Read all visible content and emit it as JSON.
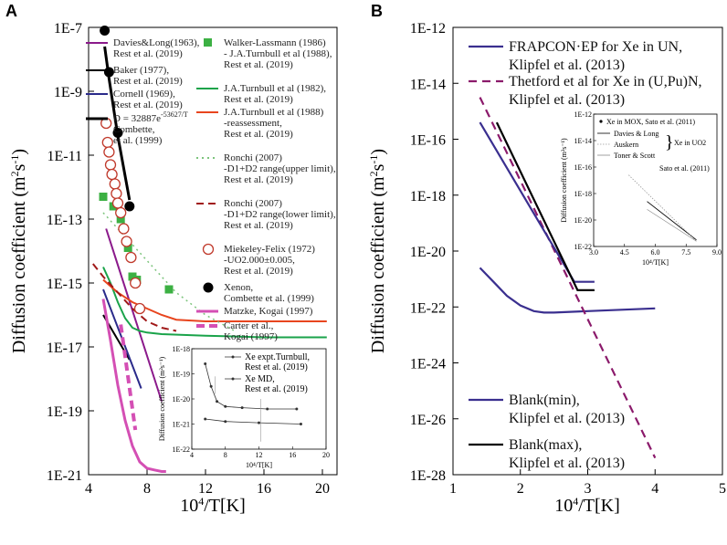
{
  "panels": {
    "A": {
      "label": "A"
    },
    "B": {
      "label": "B"
    }
  },
  "chart_data": [
    {
      "type": "line",
      "panel": "A",
      "xlabel": "10^4/T[K]",
      "ylabel": "Diffusion coefficient (m^2s^-1)",
      "xlim": [
        4,
        21
      ],
      "ylim_log10": [
        -21,
        -7
      ],
      "xticks": [
        "4",
        "8",
        "12",
        "16",
        "20"
      ],
      "yticks": [
        "1E-7",
        "1E-9",
        "1E-11",
        "1E-13",
        "1E-15",
        "1E-17",
        "1E-19",
        "1E-21"
      ],
      "series": [
        {
          "name": "Davies&Long(1963), Rest et al. (2019)",
          "color": "#8b1a8b",
          "x": [
            5.2,
            9.0
          ],
          "y": [
            -13.3,
            -18.7
          ]
        },
        {
          "name": "Baker (1977), Rest et al. (2019)",
          "color": "#000000",
          "x": [
            5.0,
            6.8
          ],
          "y": [
            -16.0,
            -17.4
          ]
        },
        {
          "name": "Cornell (1969), Rest et al. (2019)",
          "color": "#2a2a8a",
          "x": [
            5.0,
            7.6
          ],
          "y": [
            -15.2,
            -18.3
          ]
        },
        {
          "name": "D = 32887e^-53627/T Combette, et al. (1999)",
          "color": "#000000",
          "x": [
            5.1,
            5.4,
            6.0,
            6.8
          ],
          "y": [
            -7.6,
            -8.6,
            -10.4,
            -12.4
          ]
        },
        {
          "name": "J.A.Turnbull et al (1982), Rest et al. (2019)",
          "color": "#1aa34a",
          "x": [
            5.0,
            5.5,
            6.0,
            6.5,
            7.0,
            7.5,
            8.0,
            9.0,
            12.0,
            16.0,
            20.3
          ],
          "y": [
            -14.5,
            -15.0,
            -15.6,
            -16.1,
            -16.4,
            -16.5,
            -16.55,
            -16.6,
            -16.65,
            -16.7,
            -16.7
          ]
        },
        {
          "name": "J.A.Turnbull et al (1988) -reassessment, Rest et al. (2019)",
          "color": "#e8451e",
          "x": [
            5.0,
            6.0,
            7.0,
            8.0,
            9.0,
            10.0,
            12.0,
            16.0,
            20.3
          ],
          "y": [
            -14.9,
            -15.3,
            -15.6,
            -15.8,
            -16.0,
            -16.15,
            -16.2,
            -16.2,
            -16.2
          ]
        },
        {
          "name": "Ronchi (2007) -D1+D2 range(upper limit), Rest et al. (2019)",
          "color": "#7cc47c",
          "x": [
            5.0,
            7.0,
            9.0,
            10.0,
            12.0,
            14.0
          ],
          "y": [
            -12.8,
            -13.8,
            -14.8,
            -15.3,
            -16.0,
            -16.5
          ]
        },
        {
          "name": "Ronchi (2007) -D1+D2 range(lower limit), Rest et al. (2019)",
          "color": "#a01818",
          "x": [
            4.3,
            5.0,
            6.0,
            7.0,
            8.0,
            9.0,
            10.0
          ],
          "y": [
            -14.4,
            -14.8,
            -15.3,
            -15.8,
            -16.2,
            -16.4,
            -16.5
          ]
        },
        {
          "name": "Matzke, Kogai (1997)",
          "color": "#d44fb4",
          "x": [
            5.0,
            5.5,
            6.0,
            6.5,
            7.0,
            7.5,
            8.0,
            8.5,
            9.0,
            9.3
          ],
          "y": [
            -15.5,
            -16.8,
            -18.2,
            -19.3,
            -20.1,
            -20.6,
            -20.8,
            -20.85,
            -20.9,
            -20.9
          ]
        },
        {
          "name": "Carter et al., Kogai (1997)",
          "color": "#d44fb4",
          "x": [
            6.2,
            7.2
          ],
          "y": [
            -16.3,
            -19.6
          ]
        }
      ],
      "scatter": [
        {
          "name": "Walker-Lassmann (1986) - J.A.Turnbull et al (1988), Rest et al. (2019)",
          "color": "#3cb043",
          "marker": "square",
          "x": [
            5.0,
            5.7,
            6.2,
            6.7,
            7.0,
            7.3,
            9.5
          ],
          "y": [
            -12.3,
            -12.6,
            -13.0,
            -13.9,
            -14.8,
            -14.9,
            -15.2
          ]
        },
        {
          "name": "Miekeley-Felix (1972) -UO2.000±0.005, Rest et al. (2019)",
          "color": "#c0392b",
          "marker": "open-circle",
          "x": [
            5.2,
            5.3,
            5.4,
            5.5,
            5.6,
            5.8,
            5.9,
            6.0,
            6.2,
            6.4,
            6.6,
            6.9,
            7.2,
            7.5
          ],
          "y": [
            -10.0,
            -10.6,
            -10.9,
            -11.3,
            -11.6,
            -11.9,
            -12.2,
            -12.5,
            -12.8,
            -13.3,
            -13.7,
            -14.2,
            -15.0,
            -15.8
          ]
        },
        {
          "name": "Xenon, Combette et al. (1999)",
          "color": "#000000",
          "marker": "filled-circle",
          "x": [
            5.1,
            5.4,
            6.0,
            6.8
          ],
          "y": [
            -7.1,
            -8.4,
            -10.3,
            -12.6
          ]
        }
      ],
      "inset": {
        "xlabel": "10^4/T[K]",
        "ylabel": "Diffusion coefficient (m^2s^-1)",
        "xticks": [
          "4",
          "8",
          "12",
          "16",
          "20"
        ],
        "yticks": [
          "1E-18",
          "1E-19",
          "1E-20",
          "1E-21",
          "1E-22"
        ],
        "series": [
          {
            "name": "Xe expt.Turnbull, Rest et al. (2019)",
            "x": [
              5.6,
              6.3,
              7.0,
              8.0,
              10.0,
              13.0,
              16.5
            ],
            "y": [
              -18.6,
              -19.5,
              -20.1,
              -20.3,
              -20.35,
              -20.4,
              -20.4
            ]
          },
          {
            "name": "Xe MD, Rest et al. (2019)",
            "x": [
              5.6,
              8.0,
              12.0,
              17.0
            ],
            "y": [
              -20.8,
              -20.9,
              -20.95,
              -21.0
            ]
          }
        ]
      }
    },
    {
      "type": "line",
      "panel": "B",
      "xlabel": "10^4/T[K]",
      "ylabel": "Diffusion coefficient (m^2s^-1)",
      "xlim": [
        1,
        5
      ],
      "ylim_log10": [
        -28,
        -12
      ],
      "xticks": [
        "1",
        "2",
        "3",
        "4",
        "5"
      ],
      "yticks": [
        "1E-12",
        "1E-14",
        "1E-16",
        "1E-18",
        "1E-20",
        "1E-22",
        "1E-24",
        "1E-26",
        "1E-28"
      ],
      "series": [
        {
          "name": "FRAPCON·EP for Xe in UN, Klipfel et al. (2013)",
          "color": "#3a2f8f",
          "x": [
            1.4,
            1.6,
            1.8,
            2.0,
            2.2,
            2.35,
            2.5,
            3.0,
            3.5,
            4.0
          ],
          "y": [
            -20.6,
            -21.1,
            -21.6,
            -21.95,
            -22.15,
            -22.2,
            -22.2,
            -22.15,
            -22.1,
            -22.05
          ]
        },
        {
          "name": "Thetford et al for Xe in (U,Pu)N, Klipfel et al. (2013)",
          "color": "#8b1a6b",
          "dash": true,
          "x": [
            1.4,
            4.0
          ],
          "y": [
            -14.5,
            -27.4
          ]
        },
        {
          "name": "Blank(min), Klipfel et al. (2013)",
          "color": "#3a2f8f",
          "x": [
            1.4,
            2.8,
            3.1
          ],
          "y": [
            -15.4,
            -21.1,
            -21.1
          ]
        },
        {
          "name": "Blank(max), Klipfel et al. (2013)",
          "color": "#000000",
          "x": [
            1.65,
            2.85,
            3.1
          ],
          "y": [
            -15.4,
            -21.4,
            -21.4
          ]
        }
      ],
      "inset": {
        "xlabel": "10^4/T[K]",
        "ylabel": "Diffusion coefficient (m^2s^-1)",
        "xticks": [
          "3.0",
          "4.5",
          "6.0",
          "7.5",
          "9.0"
        ],
        "yticks": [
          "1E-12",
          "1E-14",
          "1E-16",
          "1E-18",
          "1E-20",
          "1E-22"
        ],
        "legend": [
          "Xe in MOX, Sato et al. (2011)",
          "Davies & Long",
          "Auskern",
          "Toner & Scott",
          "Xe in UO2",
          "Sato et al. (2011)"
        ],
        "series": [
          {
            "name": "Davies & Long",
            "x": [
              5.6,
              8.0
            ],
            "y": [
              -18.6,
              -21.5
            ]
          },
          {
            "name": "Auskern",
            "x": [
              4.7,
              8.0
            ],
            "y": [
              -16.6,
              -21.6
            ]
          },
          {
            "name": "Toner & Scott",
            "x": [
              5.6,
              8.0
            ],
            "y": [
              -19.2,
              -21.6
            ]
          }
        ]
      }
    }
  ],
  "legend_A": [
    {
      "text": [
        "Davies&Long(1963),",
        "Rest et al. (2019)"
      ]
    },
    {
      "text": [
        "Baker (1977),",
        "Rest et al. (2019)"
      ]
    },
    {
      "text": [
        "Cornell (1969),",
        "Rest et al. (2019)"
      ]
    },
    {
      "text": [
        "D = 32887e^-53627/T",
        "Combette,",
        "et al. (1999)"
      ]
    },
    {
      "text": [
        "Walker-Lassmann (1986)",
        "- J.A.Turnbull et al (1988),",
        "Rest et al. (2019)"
      ]
    },
    {
      "text": [
        "J.A.Turnbull et al (1982),",
        "Rest et al. (2019)"
      ]
    },
    {
      "text": [
        "J.A.Turnbull et al (1988)",
        "-reassessment,",
        "Rest et al. (2019)"
      ]
    },
    {
      "text": [
        "Ronchi (2007)",
        "-D1+D2 range(upper limit),",
        "Rest et al. (2019)"
      ]
    },
    {
      "text": [
        "Ronchi (2007)",
        "-D1+D2 range(lower limit),",
        "Rest et al. (2019)"
      ]
    },
    {
      "text": [
        "Miekeley-Felix (1972)",
        "-UO2.000±0.005,",
        "Rest et al. (2019)"
      ]
    },
    {
      "text": [
        "Xenon,",
        "Combette et al. (1999)"
      ]
    },
    {
      "text": [
        "Matzke, Kogai (1997)"
      ]
    },
    {
      "text": [
        "Carter et al.,",
        "Kogai (1997)"
      ]
    }
  ],
  "legend_A_inset": [
    {
      "text": [
        "Xe expt.Turnbull,",
        "Rest et al. (2019)"
      ]
    },
    {
      "text": [
        "Xe MD,",
        "Rest et al. (2019)"
      ]
    }
  ],
  "legend_B": [
    {
      "text": [
        "FRAPCON·EP for Xe in UN,",
        "Klipfel et al. (2013)"
      ]
    },
    {
      "text": [
        "Thetford et al for Xe in (U,Pu)N,",
        "Klipfel et al. (2013)"
      ]
    },
    {
      "text": [
        "Blank(min),",
        "Klipfel et al. (2013)"
      ]
    },
    {
      "text": [
        "Blank(max),",
        "Klipfel et al. (2013)"
      ]
    }
  ]
}
